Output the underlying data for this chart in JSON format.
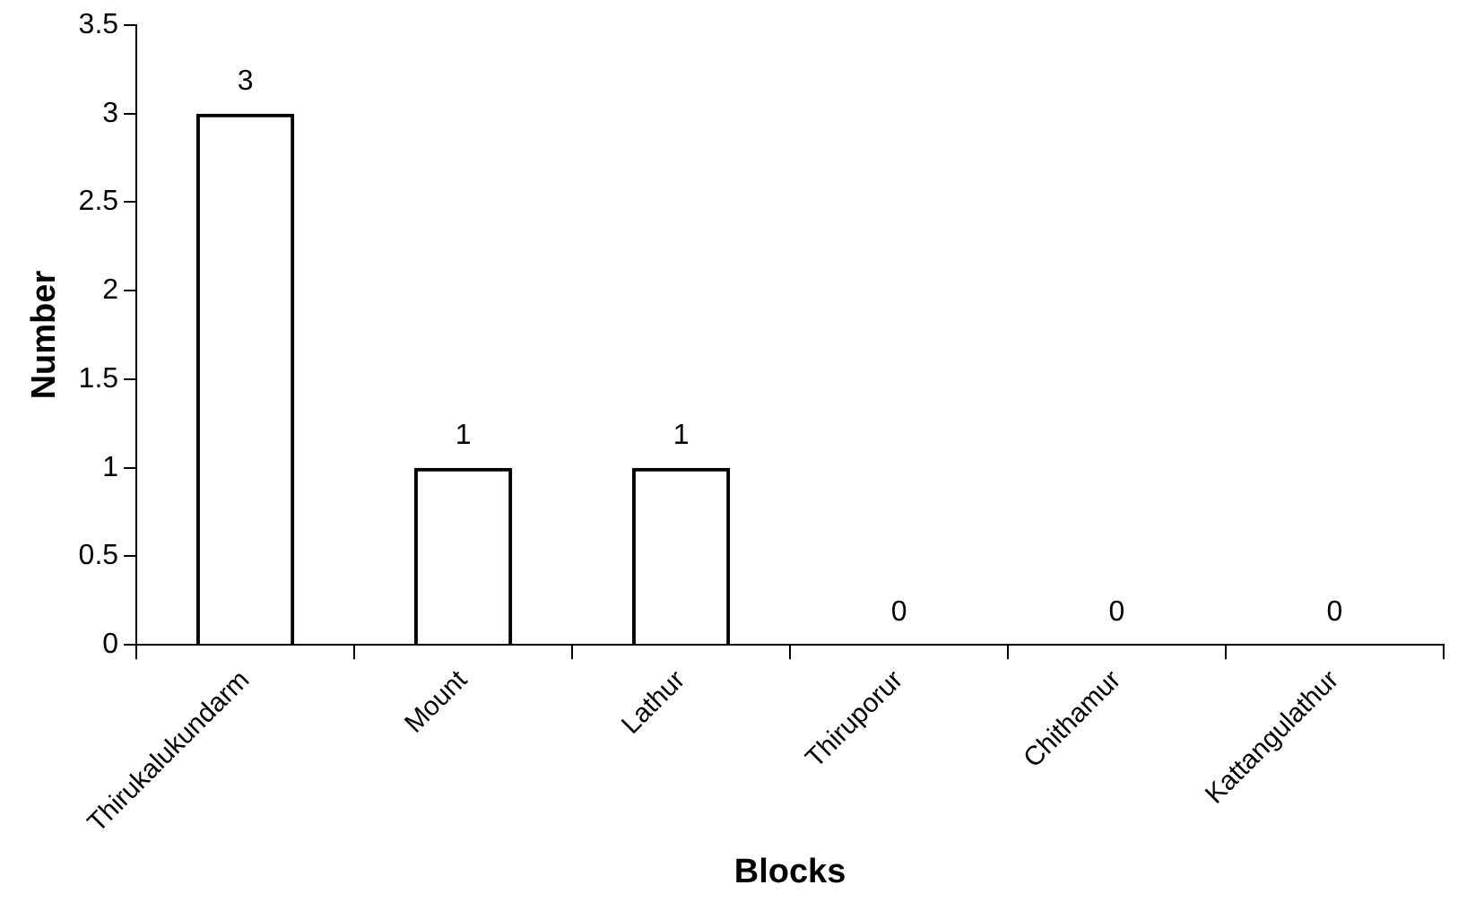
{
  "chart_data": {
    "type": "bar",
    "xlabel": "Blocks",
    "ylabel": "Number",
    "categories": [
      "Thirukalukundarm",
      "Mount",
      "Lathur",
      "Thiruporur",
      "Chithamur",
      "Kattangulathur"
    ],
    "values": [
      3,
      1,
      1,
      0,
      0,
      0
    ],
    "color": "#000000",
    "ylim": [
      0,
      3.5
    ],
    "yticks": [
      0,
      0.5,
      1,
      1.5,
      2,
      2.5,
      3,
      3.5
    ],
    "data_labels": true
  }
}
